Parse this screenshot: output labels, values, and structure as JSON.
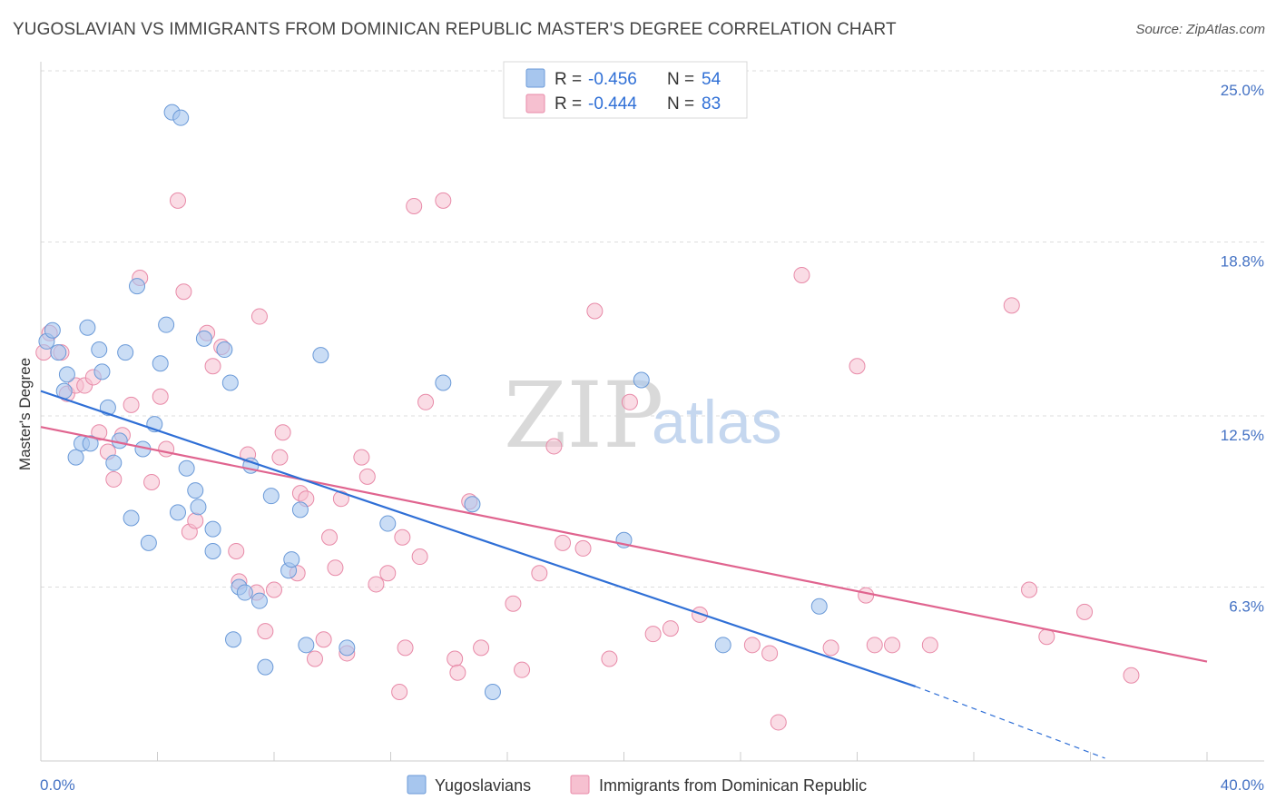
{
  "header": {
    "title": "YUGOSLAVIAN VS IMMIGRANTS FROM DOMINICAN REPUBLIC MASTER'S DEGREE CORRELATION CHART",
    "source": "Source: ZipAtlas.com"
  },
  "legend": {
    "r_label": "R =",
    "n_label": "N =",
    "rows": [
      {
        "r": "-0.456",
        "n": "54",
        "color": "#a7c6ee",
        "stroke": "#6b9ad8"
      },
      {
        "r": "-0.444",
        "n": "83",
        "color": "#f6c0d0",
        "stroke": "#e88aa8"
      }
    ]
  },
  "watermark": {
    "zip": "ZIP",
    "atlas": "atlas"
  },
  "colors": {
    "blue_fill": "#a7c6ee",
    "blue_stroke": "#6b9ad8",
    "blue_line": "#2f6fd6",
    "pink_fill": "#f6c0d0",
    "pink_stroke": "#e88aa8",
    "pink_line": "#e0648f",
    "grid": "#dddddd",
    "axis_text": "#4472c4"
  },
  "chart_data": {
    "type": "scatter",
    "title": "YUGOSLAVIAN VS IMMIGRANTS FROM DOMINICAN REPUBLIC MASTER'S DEGREE CORRELATION CHART",
    "xlabel": "",
    "ylabel": "Master's Degree",
    "xlim": [
      0,
      40
    ],
    "ylim": [
      0,
      25
    ],
    "x_tick_labels": [
      "0.0%",
      "40.0%"
    ],
    "y_tick_labels": [
      "6.3%",
      "12.5%",
      "18.8%",
      "25.0%"
    ],
    "y_ticks": [
      6.3,
      12.5,
      18.8,
      25.0
    ],
    "grid": true,
    "legend_position": "bottom",
    "series": [
      {
        "name": "Yugoslavians",
        "points": [
          [
            0.2,
            15.2
          ],
          [
            0.4,
            15.6
          ],
          [
            0.6,
            14.8
          ],
          [
            0.8,
            13.4
          ],
          [
            0.9,
            14.0
          ],
          [
            1.2,
            11.0
          ],
          [
            1.4,
            11.5
          ],
          [
            1.6,
            15.7
          ],
          [
            1.7,
            11.5
          ],
          [
            2.0,
            14.9
          ],
          [
            2.1,
            14.1
          ],
          [
            2.3,
            12.8
          ],
          [
            2.5,
            10.8
          ],
          [
            2.7,
            11.6
          ],
          [
            2.9,
            14.8
          ],
          [
            3.1,
            8.8
          ],
          [
            3.3,
            17.2
          ],
          [
            3.5,
            11.3
          ],
          [
            3.7,
            7.9
          ],
          [
            3.9,
            12.2
          ],
          [
            4.1,
            14.4
          ],
          [
            4.3,
            15.8
          ],
          [
            4.5,
            23.5
          ],
          [
            4.8,
            23.3
          ],
          [
            4.7,
            9.0
          ],
          [
            5.0,
            10.6
          ],
          [
            5.3,
            9.8
          ],
          [
            5.4,
            9.2
          ],
          [
            5.6,
            15.3
          ],
          [
            5.9,
            8.4
          ],
          [
            5.9,
            7.6
          ],
          [
            6.3,
            14.9
          ],
          [
            6.5,
            13.7
          ],
          [
            6.6,
            4.4
          ],
          [
            6.8,
            6.3
          ],
          [
            7.0,
            6.1
          ],
          [
            7.2,
            10.7
          ],
          [
            7.5,
            5.8
          ],
          [
            7.7,
            3.4
          ],
          [
            7.9,
            9.6
          ],
          [
            8.5,
            6.9
          ],
          [
            8.6,
            7.3
          ],
          [
            8.9,
            9.1
          ],
          [
            9.1,
            4.2
          ],
          [
            9.6,
            14.7
          ],
          [
            10.5,
            4.1
          ],
          [
            11.9,
            8.6
          ],
          [
            13.8,
            13.7
          ],
          [
            14.8,
            9.3
          ],
          [
            15.5,
            2.5
          ],
          [
            20.0,
            8.0
          ],
          [
            20.6,
            13.8
          ],
          [
            23.4,
            4.2
          ],
          [
            26.7,
            5.6
          ]
        ]
      },
      {
        "name": "Immigrants from Dominican Republic",
        "points": [
          [
            0.1,
            14.8
          ],
          [
            0.3,
            15.5
          ],
          [
            0.7,
            14.8
          ],
          [
            0.9,
            13.3
          ],
          [
            1.2,
            13.6
          ],
          [
            1.5,
            13.6
          ],
          [
            1.8,
            13.9
          ],
          [
            2.0,
            11.9
          ],
          [
            2.3,
            11.2
          ],
          [
            2.5,
            10.2
          ],
          [
            2.8,
            11.8
          ],
          [
            3.1,
            12.9
          ],
          [
            3.4,
            17.5
          ],
          [
            3.8,
            10.1
          ],
          [
            4.1,
            13.2
          ],
          [
            4.3,
            11.3
          ],
          [
            4.7,
            20.3
          ],
          [
            4.9,
            17.0
          ],
          [
            5.1,
            8.3
          ],
          [
            5.3,
            8.7
          ],
          [
            5.7,
            15.5
          ],
          [
            5.9,
            14.3
          ],
          [
            6.2,
            15.0
          ],
          [
            6.7,
            7.6
          ],
          [
            6.8,
            6.5
          ],
          [
            7.1,
            11.1
          ],
          [
            7.4,
            6.1
          ],
          [
            7.5,
            16.1
          ],
          [
            7.7,
            4.7
          ],
          [
            8.0,
            6.2
          ],
          [
            8.2,
            11.0
          ],
          [
            8.3,
            11.9
          ],
          [
            8.8,
            6.8
          ],
          [
            8.9,
            9.7
          ],
          [
            9.1,
            9.5
          ],
          [
            9.4,
            3.7
          ],
          [
            9.7,
            4.4
          ],
          [
            9.9,
            8.1
          ],
          [
            10.1,
            7.0
          ],
          [
            10.3,
            9.5
          ],
          [
            10.5,
            3.9
          ],
          [
            11.0,
            11.0
          ],
          [
            11.2,
            10.3
          ],
          [
            11.5,
            6.4
          ],
          [
            11.9,
            6.8
          ],
          [
            12.3,
            2.5
          ],
          [
            12.4,
            8.1
          ],
          [
            12.5,
            4.1
          ],
          [
            12.8,
            20.1
          ],
          [
            13.0,
            7.4
          ],
          [
            13.2,
            13.0
          ],
          [
            13.8,
            20.3
          ],
          [
            14.2,
            3.7
          ],
          [
            14.3,
            3.2
          ],
          [
            14.7,
            9.4
          ],
          [
            15.1,
            4.1
          ],
          [
            16.2,
            5.7
          ],
          [
            16.5,
            3.3
          ],
          [
            17.1,
            6.8
          ],
          [
            17.6,
            11.4
          ],
          [
            17.9,
            7.9
          ],
          [
            18.6,
            7.7
          ],
          [
            19.0,
            16.3
          ],
          [
            19.5,
            3.7
          ],
          [
            20.2,
            13.0
          ],
          [
            21.0,
            4.6
          ],
          [
            21.6,
            4.8
          ],
          [
            22.6,
            5.3
          ],
          [
            24.4,
            4.2
          ],
          [
            25.0,
            3.9
          ],
          [
            25.3,
            1.4
          ],
          [
            26.1,
            17.6
          ],
          [
            27.1,
            4.1
          ],
          [
            28.0,
            14.3
          ],
          [
            28.3,
            6.0
          ],
          [
            28.6,
            4.2
          ],
          [
            29.2,
            4.2
          ],
          [
            30.5,
            4.2
          ],
          [
            33.3,
            16.5
          ],
          [
            33.9,
            6.2
          ],
          [
            34.5,
            4.5
          ],
          [
            35.8,
            5.4
          ],
          [
            37.4,
            3.1
          ]
        ]
      }
    ],
    "trendlines": [
      {
        "series": "Yugoslavians",
        "x": [
          0,
          30
        ],
        "y": [
          13.4,
          2.7
        ],
        "dashed_to": [
          36.5,
          0.1
        ]
      },
      {
        "series": "Immigrants from Dominican Republic",
        "x": [
          0,
          40
        ],
        "y": [
          12.1,
          3.6
        ]
      }
    ]
  }
}
